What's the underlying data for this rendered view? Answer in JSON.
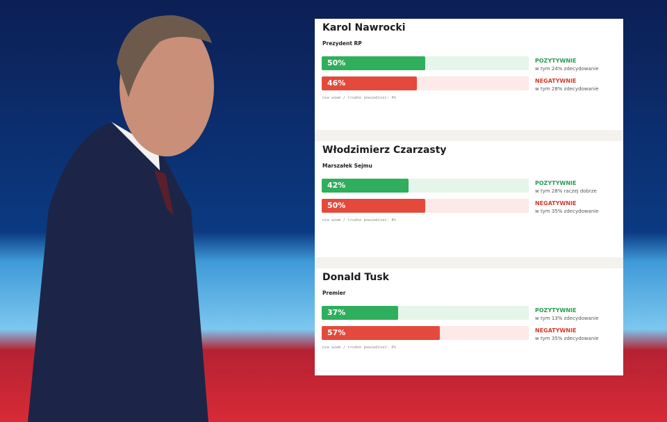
{
  "panels": [
    {
      "name": "Karol Nawrocki",
      "role": "Prezydent RP",
      "positive": {
        "value": 50,
        "label": "50%",
        "heading": "POZYTYWNIE",
        "detail": "w tym 24% zdecydowanie"
      },
      "negative": {
        "value": 46,
        "label": "46%",
        "heading": "NEGATYWNIE",
        "detail": "w tym 28% zdecydowanie"
      },
      "footnote": "nie wiem / trudno powiedzieć: 4%"
    },
    {
      "name": "Włodzimierz Czarzasty",
      "role": "Marszałek Sejmu",
      "positive": {
        "value": 42,
        "label": "42%",
        "heading": "POZYTYWNIE",
        "detail": "w tym 28% raczej dobrze"
      },
      "negative": {
        "value": 50,
        "label": "50%",
        "heading": "NEGATYWNIE",
        "detail": "w tym 35% zdecydowanie"
      },
      "footnote": "nie wiem / trudno powiedzieć: 8%"
    },
    {
      "name": "Donald Tusk",
      "role": "Premier",
      "positive": {
        "value": 37,
        "label": "37%",
        "heading": "POZYTYWNIE",
        "detail": "w tym 13% zdecydowanie"
      },
      "negative": {
        "value": 57,
        "label": "57%",
        "heading": "NEGATYWNIE",
        "detail": "w tym 35% zdecydowanie"
      },
      "footnote": "nie wiem / trudno powiedzieć: 6%"
    }
  ]
}
